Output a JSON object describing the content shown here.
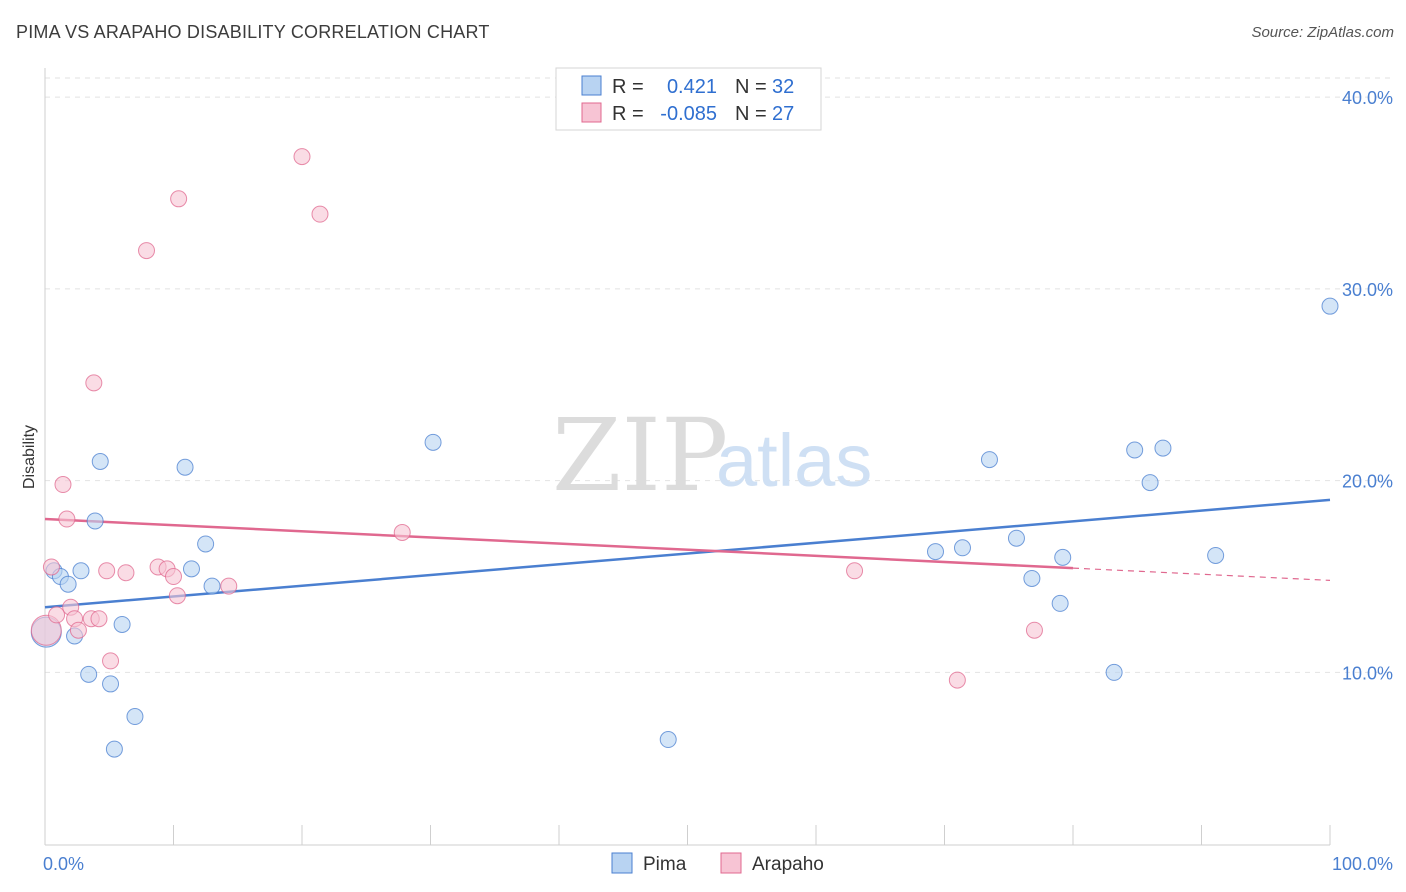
{
  "title": "PIMA VS ARAPAHO DISABILITY CORRELATION CHART",
  "source": "Source: ZipAtlas.com",
  "chart_data": {
    "type": "scatter",
    "xlabel": "",
    "ylabel": "Disability",
    "xlim": [
      0,
      100
    ],
    "ylim": [
      1,
      41
    ],
    "x_tick_labels": [
      {
        "value": 0,
        "label": "0.0%"
      },
      {
        "value": 100,
        "label": "100.0%"
      }
    ],
    "y_ticks": [
      {
        "value": 10,
        "label": "10.0%"
      },
      {
        "value": 20,
        "label": "20.0%"
      },
      {
        "value": 30,
        "label": "30.0%"
      },
      {
        "value": 40,
        "label": "40.0%"
      }
    ],
    "legend": {
      "r_label": "R =",
      "n_label": "N =",
      "entries": [
        {
          "name": "Pima",
          "r": "0.421",
          "n": "32"
        },
        {
          "name": "Arapaho",
          "r": "-0.085",
          "n": "27"
        }
      ]
    },
    "series": [
      {
        "name": "Pima",
        "color": "#4a7fd0",
        "fill": "#b8d3f2",
        "trend": {
          "x": [
            0,
            100
          ],
          "y": [
            13.4,
            19.0
          ],
          "dash_from": null
        },
        "points": [
          {
            "x": 0.1,
            "y": 12.1,
            "big": true
          },
          {
            "x": 0.7,
            "y": 15.3
          },
          {
            "x": 1.2,
            "y": 15.0
          },
          {
            "x": 1.8,
            "y": 14.6
          },
          {
            "x": 2.3,
            "y": 11.9
          },
          {
            "x": 2.8,
            "y": 15.3
          },
          {
            "x": 3.4,
            "y": 9.9
          },
          {
            "x": 3.9,
            "y": 17.9
          },
          {
            "x": 4.3,
            "y": 21.0
          },
          {
            "x": 5.1,
            "y": 9.4
          },
          {
            "x": 6.0,
            "y": 12.5
          },
          {
            "x": 5.4,
            "y": 6.0
          },
          {
            "x": 7.0,
            "y": 7.7
          },
          {
            "x": 10.9,
            "y": 20.7
          },
          {
            "x": 11.4,
            "y": 15.4
          },
          {
            "x": 12.5,
            "y": 16.7
          },
          {
            "x": 13.0,
            "y": 14.5
          },
          {
            "x": 30.2,
            "y": 22.0
          },
          {
            "x": 48.5,
            "y": 6.5
          },
          {
            "x": 69.3,
            "y": 16.3
          },
          {
            "x": 71.4,
            "y": 16.5
          },
          {
            "x": 73.5,
            "y": 21.1
          },
          {
            "x": 75.6,
            "y": 17.0
          },
          {
            "x": 76.8,
            "y": 14.9
          },
          {
            "x": 79.2,
            "y": 16.0
          },
          {
            "x": 79.0,
            "y": 13.6
          },
          {
            "x": 83.2,
            "y": 10.0
          },
          {
            "x": 84.8,
            "y": 21.6
          },
          {
            "x": 86.0,
            "y": 19.9
          },
          {
            "x": 87.0,
            "y": 21.7
          },
          {
            "x": 91.1,
            "y": 16.1
          },
          {
            "x": 100.0,
            "y": 29.1
          }
        ]
      },
      {
        "name": "Arapaho",
        "color": "#e0688f",
        "fill": "#f7c4d4",
        "trend": {
          "x": [
            0,
            100
          ],
          "y": [
            18.0,
            14.8
          ],
          "dash_from": 80
        },
        "points": [
          {
            "x": 0.1,
            "y": 12.2,
            "big": true
          },
          {
            "x": 0.5,
            "y": 15.5
          },
          {
            "x": 0.9,
            "y": 13.0
          },
          {
            "x": 1.4,
            "y": 19.8
          },
          {
            "x": 1.7,
            "y": 18.0
          },
          {
            "x": 2.0,
            "y": 13.4
          },
          {
            "x": 2.3,
            "y": 12.8
          },
          {
            "x": 2.6,
            "y": 12.2
          },
          {
            "x": 3.6,
            "y": 12.8
          },
          {
            "x": 3.8,
            "y": 25.1
          },
          {
            "x": 4.2,
            "y": 12.8
          },
          {
            "x": 4.8,
            "y": 15.3
          },
          {
            "x": 5.1,
            "y": 10.6
          },
          {
            "x": 6.3,
            "y": 15.2
          },
          {
            "x": 7.9,
            "y": 32.0
          },
          {
            "x": 8.8,
            "y": 15.5
          },
          {
            "x": 9.5,
            "y": 15.4
          },
          {
            "x": 10.0,
            "y": 15.0
          },
          {
            "x": 10.3,
            "y": 14.0
          },
          {
            "x": 10.4,
            "y": 34.7
          },
          {
            "x": 14.3,
            "y": 14.5
          },
          {
            "x": 20.0,
            "y": 36.9
          },
          {
            "x": 21.4,
            "y": 33.9
          },
          {
            "x": 27.8,
            "y": 17.3
          },
          {
            "x": 63.0,
            "y": 15.3
          },
          {
            "x": 71.0,
            "y": 9.6
          },
          {
            "x": 77.0,
            "y": 12.2
          }
        ]
      }
    ]
  }
}
